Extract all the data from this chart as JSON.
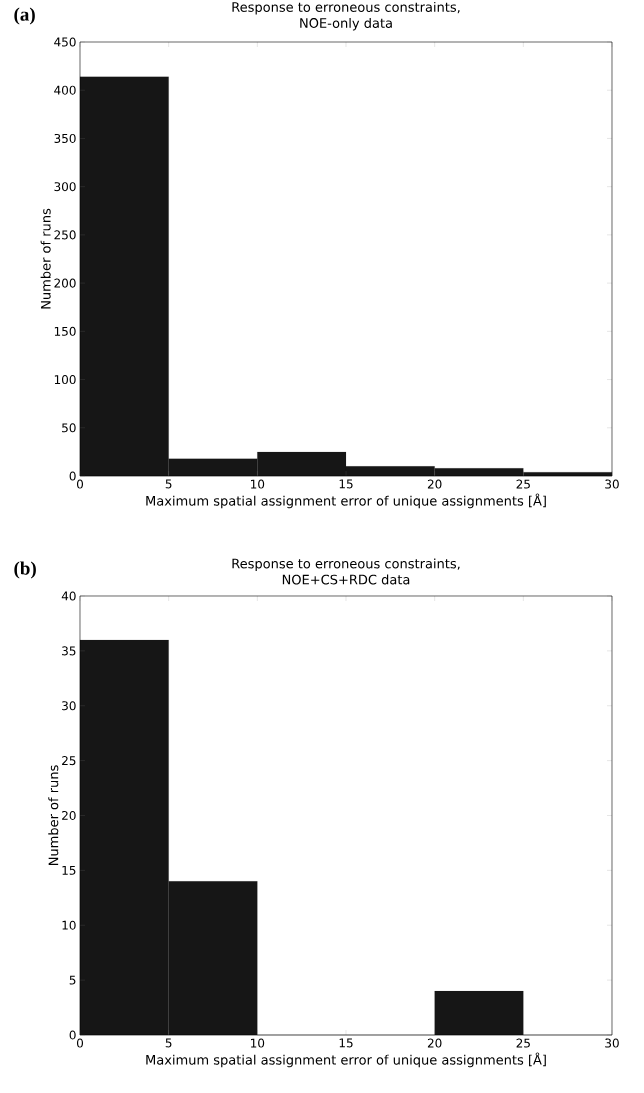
{
  "chart_data": [
    {
      "type": "histogram",
      "title": "Response to erroneous constraints,",
      "subtitle": "NOE-only data",
      "annotations": [
        "(a)"
      ],
      "xlabel": "Maximum spatial assignment error of unique assignments [Å]",
      "ylabel": "Number of runs",
      "bins": [
        0,
        5,
        10,
        15,
        20,
        25,
        30
      ],
      "values": [
        414,
        18,
        25,
        10,
        8,
        4
      ],
      "color": "#161616",
      "xlim": [
        0,
        30
      ],
      "ylim": [
        0,
        450
      ],
      "xticks": [
        0,
        5,
        10,
        15,
        20,
        25,
        30
      ],
      "yticks": [
        0,
        50,
        100,
        150,
        200,
        250,
        300,
        350,
        400,
        450
      ]
    },
    {
      "type": "histogram",
      "title": "Response to erroneous constraints,",
      "subtitle": "NOE+CS+RDC data",
      "annotations": [
        "(b)"
      ],
      "xlabel": "Maximum spatial assignment error of unique assignments [Å]",
      "ylabel": "Number of runs",
      "bins": [
        0,
        5,
        10,
        15,
        20,
        25,
        30
      ],
      "values": [
        36,
        14,
        0,
        0,
        4,
        0
      ],
      "color": "#161616",
      "xlim": [
        0,
        30
      ],
      "ylim": [
        0,
        40
      ],
      "xticks": [
        0,
        5,
        10,
        15,
        20,
        25,
        30
      ],
      "yticks": [
        0,
        5,
        10,
        15,
        20,
        25,
        30,
        35,
        40
      ]
    }
  ]
}
